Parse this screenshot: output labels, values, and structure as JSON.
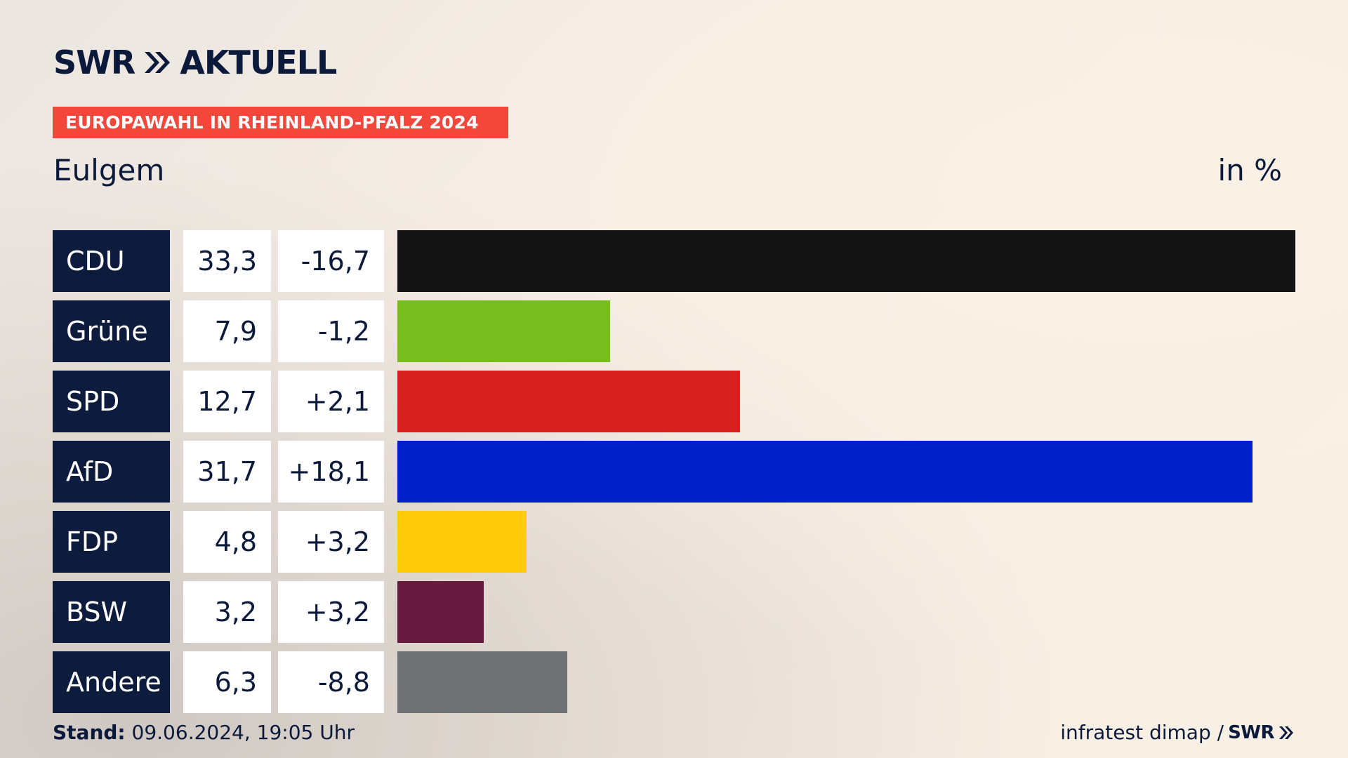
{
  "header": {
    "logo_swr": "SWR",
    "logo_aktuell": "AKTUELL",
    "banner": "EUROPAWAHL IN RHEINLAND-PFALZ 2024",
    "subtitle": "Eulgem",
    "unit": "in %"
  },
  "colors": {
    "navy": "#0d1b3d",
    "banner_red": "#f2473a"
  },
  "chart_data": {
    "type": "bar",
    "orientation": "horizontal",
    "categories": [
      "CDU",
      "Grüne",
      "SPD",
      "AfD",
      "FDP",
      "BSW",
      "Andere"
    ],
    "values": [
      33.3,
      7.9,
      12.7,
      31.7,
      4.8,
      3.2,
      6.3
    ],
    "value_labels": [
      "33,3",
      "7,9",
      "12,7",
      "31,7",
      "4,8",
      "3,2",
      "6,3"
    ],
    "diff_labels": [
      "-16,7",
      "-1,2",
      "+2,1",
      "+18,1",
      "+3,2",
      "+3,2",
      "-8,8"
    ],
    "diffs": [
      -16.7,
      -1.2,
      2.1,
      18.1,
      3.2,
      3.2,
      -8.8
    ],
    "bar_colors": [
      "#141414",
      "#78bd1d",
      "#d71f1f",
      "#0021c9",
      "#ffcd0a",
      "#661a3d",
      "#707173"
    ],
    "unit": "in %",
    "xlim": [
      0,
      33.3
    ]
  },
  "footer": {
    "stand_label": "Stand:",
    "stand_value": "09.06.2024, 19:05 Uhr",
    "source": "infratest dimap /",
    "source_logo": "SWR"
  }
}
